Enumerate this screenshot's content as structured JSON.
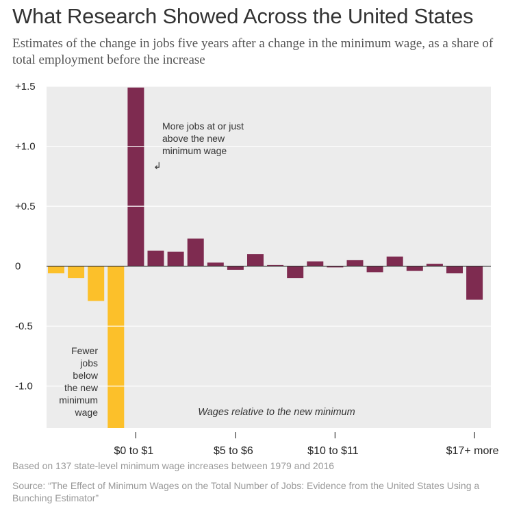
{
  "title": "What Research Showed Across the United States",
  "subtitle": "Estimates of the change in jobs five years after a change in the minimum wage, as a share of total employment before the increase",
  "note": "Based on 137 state-level minimum wage increases between 1979 and 2016",
  "source": "Source: “The Effect of Minimum Wages on the Total Number of Jobs: Evidence from the United States Using a Bunching Estimator”",
  "colors": {
    "negative": "#fcc02a",
    "positive": "#7e2b50",
    "plot_bg": "#ececec",
    "zero_line": "#333333"
  },
  "chart_data": {
    "type": "bar",
    "title": "What Research Showed Across the United States",
    "subtitle": "Estimates of the change in jobs five years after a change in the minimum wage, as a share of total employment before the increase",
    "xlabel": "Wages relative to the new minimum",
    "ylabel": "",
    "ylim": [
      -1.35,
      1.5
    ],
    "yticks": [
      {
        "value": 1.5,
        "label": "+1.5"
      },
      {
        "value": 1.0,
        "label": "+1.0"
      },
      {
        "value": 0.5,
        "label": "+0.5"
      },
      {
        "value": 0,
        "label": "0"
      },
      {
        "value": -0.5,
        "label": "-0.5"
      },
      {
        "value": -1.0,
        "label": "-1.0"
      }
    ],
    "grid": true,
    "categories_note": "Bins are wage intervals relative to the new minimum; bins 0-3 are below the minimum, bin 4 is $0 to $1",
    "values": [
      -0.06,
      -0.1,
      -0.29,
      -1.35,
      1.49,
      0.13,
      0.12,
      0.23,
      0.03,
      -0.03,
      0.1,
      0.01,
      -0.1,
      0.04,
      -0.01,
      0.05,
      -0.05,
      0.08,
      -0.04,
      0.02,
      -0.06,
      -0.28
    ],
    "xticks": [
      {
        "bin": 4,
        "label": "$0 to $1"
      },
      {
        "bin": 9,
        "label": "$5 to $6"
      },
      {
        "bin": 14,
        "label": "$10 to $11"
      },
      {
        "bin": 21,
        "label": "$17+ more"
      }
    ],
    "annotations": {
      "positive": [
        "More jobs at or just",
        "above the new",
        "minimum wage"
      ],
      "negative": [
        "Fewer",
        "jobs",
        "below",
        "the new",
        "minimum",
        "wage"
      ],
      "arrow": "↲"
    }
  }
}
